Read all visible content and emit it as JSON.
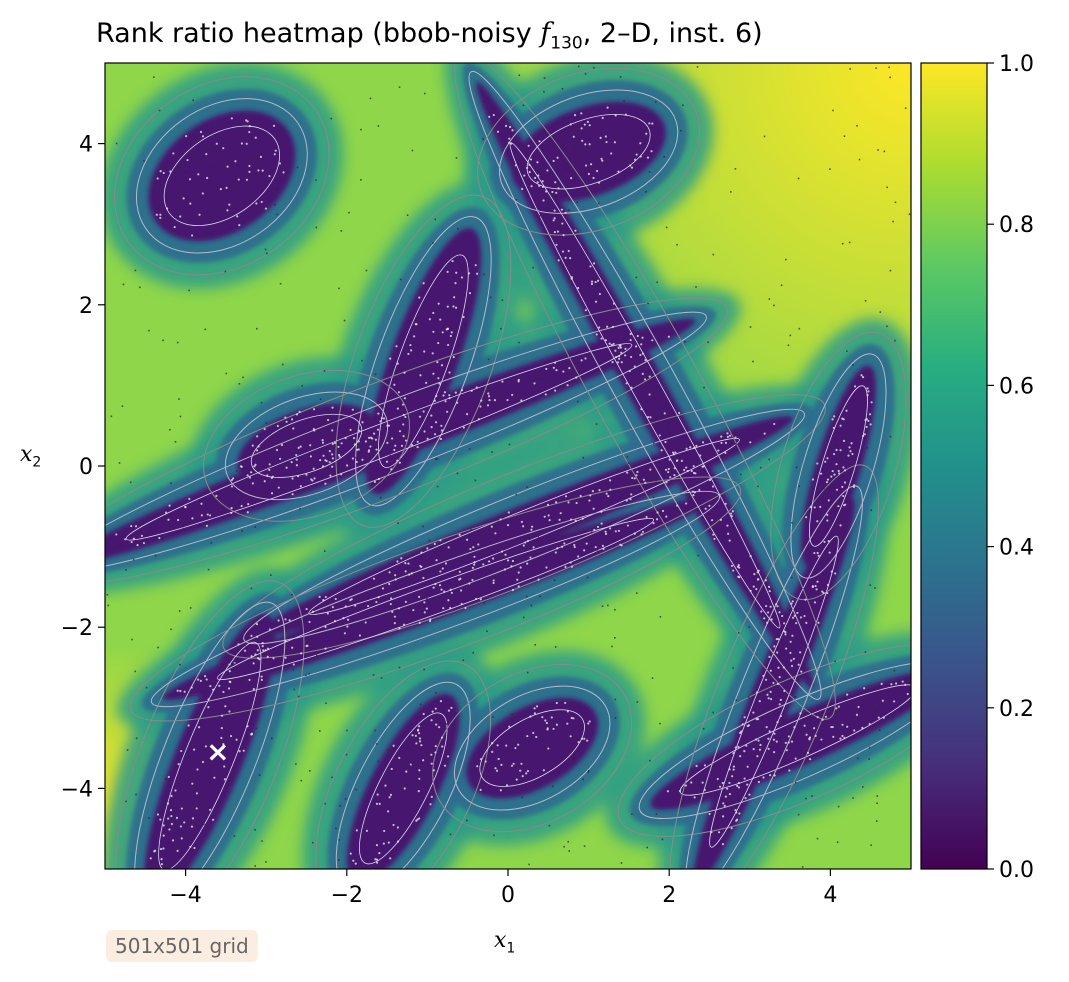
{
  "title": {
    "text": "Rank ratio heatmap (bbob-noisy ",
    "func_symbol": "f",
    "func_index": "130",
    "text_after": ", 2–D, inst. 6)"
  },
  "badge": "501x501 grid",
  "chart_data": {
    "type": "heatmap",
    "x_label_symbol": "x",
    "x_label_index": "1",
    "y_label_symbol": "x",
    "y_label_index": "2",
    "xlim": [
      -5,
      5
    ],
    "ylim": [
      -5,
      5
    ],
    "x_ticks": [
      -4,
      -2,
      0,
      2,
      4
    ],
    "y_ticks": [
      -4,
      -2,
      0,
      2,
      4
    ],
    "x_tick_labels": [
      "−4",
      "−2",
      "0",
      "2",
      "4"
    ],
    "y_tick_labels": [
      "−4",
      "−2",
      "0",
      "2",
      "4"
    ],
    "colorbar": {
      "range": [
        0.0,
        1.0
      ],
      "ticks": [
        0.0,
        0.2,
        0.4,
        0.6,
        0.8,
        1.0
      ],
      "tick_labels": [
        "0.0",
        "0.2",
        "0.4",
        "0.6",
        "0.8",
        "1.0"
      ],
      "colormap": "viridis"
    },
    "marker": {
      "symbol": "×",
      "x": -3.6,
      "y": -3.55,
      "color": "#ffffff"
    },
    "valleys": [
      {
        "cx": -3.55,
        "cy": 3.6,
        "rx": 1.0,
        "ry": 0.7,
        "angle": 35
      },
      {
        "cx": -1.05,
        "cy": 1.3,
        "rx": 1.75,
        "ry": 0.42,
        "angle": 70
      },
      {
        "cx": -1.6,
        "cy": 0.3,
        "rx": 4.2,
        "ry": 0.28,
        "angle": 21
      },
      {
        "cx": 0.2,
        "cy": -0.75,
        "rx": 3.6,
        "ry": 0.26,
        "angle": 22
      },
      {
        "cx": -3.7,
        "cy": -3.6,
        "rx": 1.9,
        "ry": 0.42,
        "angle": 68
      },
      {
        "cx": -1.3,
        "cy": -4.0,
        "rx": 1.3,
        "ry": 0.42,
        "angle": 63
      },
      {
        "cx": 3.6,
        "cy": -3.4,
        "rx": 2.0,
        "ry": 0.32,
        "angle": 24
      },
      {
        "cx": 3.3,
        "cy": -2.8,
        "rx": 2.6,
        "ry": 0.26,
        "angle": 68
      },
      {
        "cx": 4.1,
        "cy": 0.0,
        "rx": 1.3,
        "ry": 0.28,
        "angle": 73
      },
      {
        "cx": 1.7,
        "cy": 1.0,
        "rx": 4.3,
        "ry": 0.24,
        "angle": -61
      },
      {
        "cx": 1.0,
        "cy": 3.9,
        "rx": 1.0,
        "ry": 0.55,
        "angle": 20
      },
      {
        "cx": -2.5,
        "cy": 0.25,
        "rx": 0.9,
        "ry": 0.45,
        "angle": 20
      },
      {
        "cx": -0.9,
        "cy": -1.65,
        "rx": 3.6,
        "ry": 0.25,
        "angle": 20
      },
      {
        "cx": 0.3,
        "cy": -3.5,
        "rx": 0.9,
        "ry": 0.5,
        "angle": 30
      }
    ]
  }
}
